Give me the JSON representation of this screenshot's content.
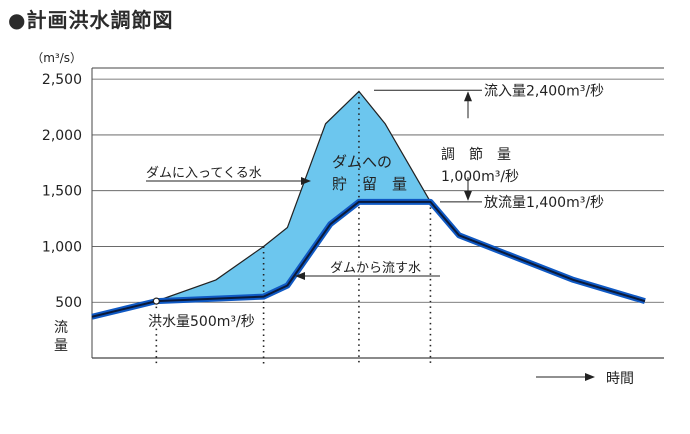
{
  "title": "●計画洪水調節図",
  "chart_data": {
    "type": "line",
    "y_unit": "（m³/s）",
    "ylim": [
      0,
      2600
    ],
    "yticks": [
      {
        "value": 2500,
        "label": "2,500"
      },
      {
        "value": 2000,
        "label": "2,000"
      },
      {
        "value": 1500,
        "label": "1,500"
      },
      {
        "value": 1000,
        "label": "1,000"
      },
      {
        "value": 500,
        "label": "500"
      }
    ],
    "ylabel": "流\n量",
    "xlabel": "時間",
    "grid": true,
    "series": [
      {
        "name": "ダムに入ってくる水",
        "color": "#222222",
        "fill": "#6cc6ee",
        "points": [
          [
            0,
            370
          ],
          [
            1.35,
            510
          ],
          [
            2.6,
            700
          ],
          [
            3.6,
            1000
          ],
          [
            4.1,
            1170
          ],
          [
            4.9,
            2100
          ],
          [
            5.6,
            2390
          ],
          [
            6.15,
            2100
          ],
          [
            7.1,
            1400
          ],
          [
            7.7,
            1100
          ],
          [
            10.1,
            700
          ],
          [
            11.6,
            510
          ]
        ]
      },
      {
        "name": "ダムから流す水",
        "color": "#0f59c4",
        "points": [
          [
            0,
            370
          ],
          [
            1.35,
            510
          ],
          [
            3.6,
            550
          ],
          [
            4.1,
            650
          ],
          [
            5.0,
            1200
          ],
          [
            5.6,
            1400
          ],
          [
            7.1,
            1400
          ],
          [
            7.7,
            1100
          ],
          [
            10.1,
            700
          ],
          [
            11.6,
            510
          ]
        ]
      }
    ],
    "dotted_x": [
      1.35,
      3.6,
      5.6,
      7.1
    ],
    "annotations": {
      "inflow_peak": "流入量2,400m³/秒",
      "regulation_label": "調　節　量",
      "regulation_value": "1,000m³/秒",
      "outflow_peak": "放流量1,400m³/秒",
      "storage_label": "ダムへの\n貯　留　量",
      "flood_point": "洪水量500m³/秒",
      "inflow_label": "ダムに入ってくる水",
      "outflow_label": "ダムから流す水"
    }
  }
}
